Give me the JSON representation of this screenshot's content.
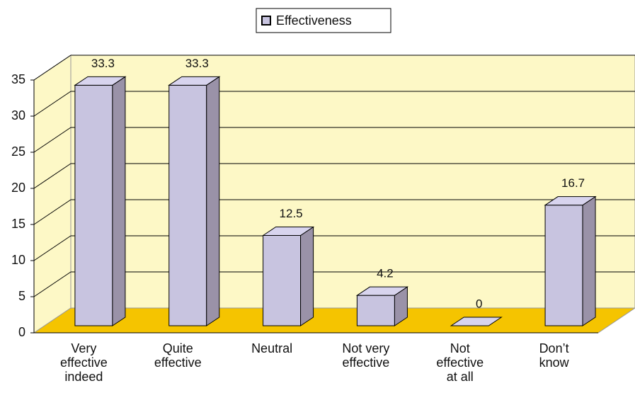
{
  "chart_data": {
    "type": "bar3d",
    "categories": [
      "Very\neffective\nindeed",
      "Quite\neffective",
      "Neutral",
      "Not very\neffective",
      "Not\neffective\nat all",
      "Don’t\nknow"
    ],
    "series": [
      {
        "name": "Effectiveness",
        "color": "#c8c4e0",
        "values": [
          33.3,
          33.3,
          12.5,
          4.2,
          0,
          16.7
        ]
      }
    ],
    "ylim": [
      0,
      35
    ],
    "yticks": [
      0,
      5,
      10,
      15,
      20,
      25,
      30,
      35
    ],
    "grid": true,
    "legend": "top"
  }
}
